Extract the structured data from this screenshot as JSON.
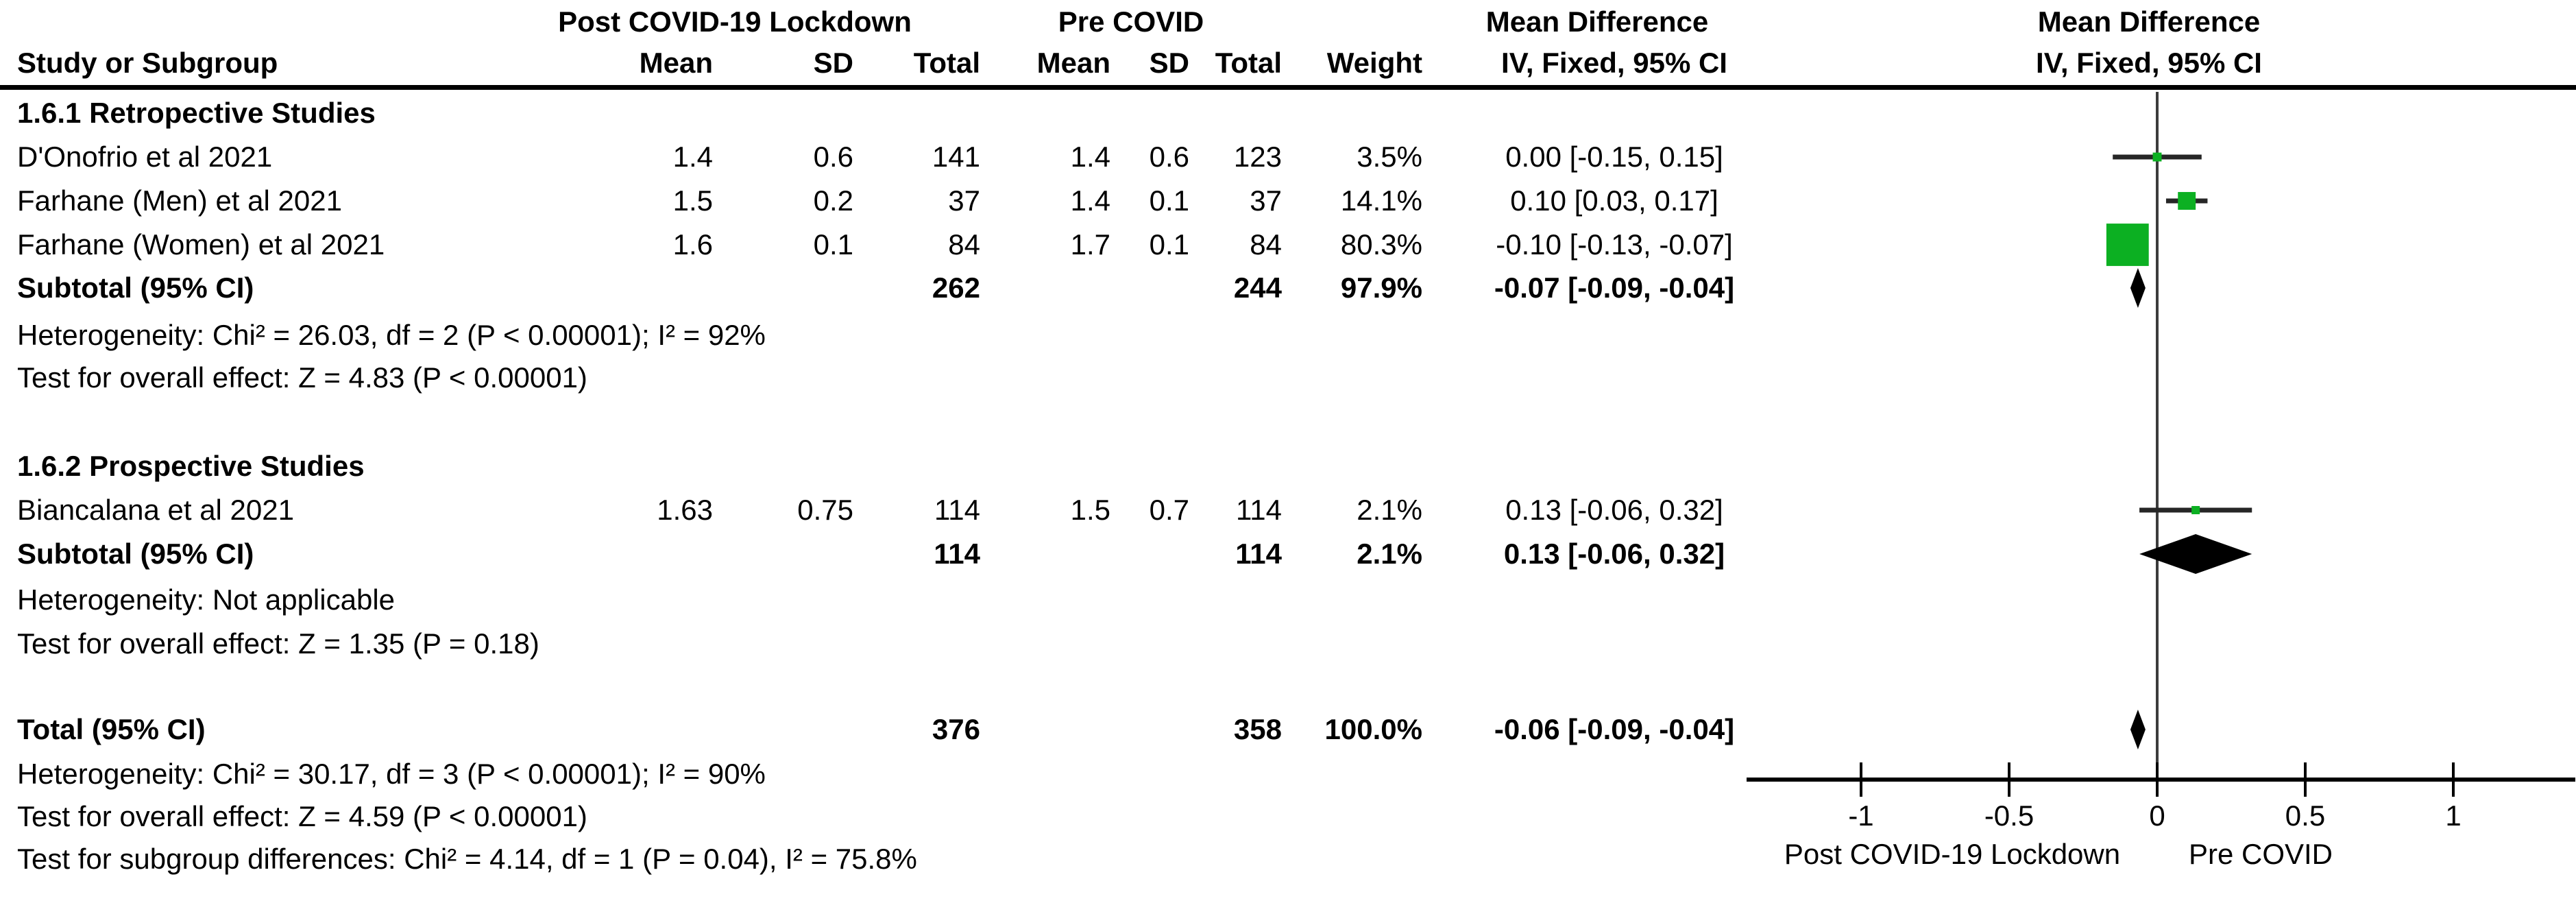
{
  "header": {
    "group1": "Post COVID-19 Lockdown",
    "group2": "Pre COVID",
    "mean_diff": "Mean Difference",
    "study_col": "Study or Subgroup",
    "mean_col": "Mean",
    "sd_col": "SD",
    "total_col": "Total",
    "weight_col": "Weight",
    "iv_col": "IV, Fixed, 95% CI"
  },
  "sections": [
    {
      "title": "1.6.1 Retropective Studies",
      "studies": [
        {
          "name": "D'Onofrio et al 2021",
          "mean1": "1.4",
          "sd1": "0.6",
          "total1": "141",
          "mean2": "1.4",
          "sd2": "0.6",
          "total2": "123",
          "weight": "3.5%",
          "ci": "0.00 [-0.15, 0.15]"
        },
        {
          "name": "Farhane (Men) et al 2021",
          "mean1": "1.5",
          "sd1": "0.2",
          "total1": "37",
          "mean2": "1.4",
          "sd2": "0.1",
          "total2": "37",
          "weight": "14.1%",
          "ci": "0.10 [0.03, 0.17]"
        },
        {
          "name": "Farhane (Women) et al 2021",
          "mean1": "1.6",
          "sd1": "0.1",
          "total1": "84",
          "mean2": "1.7",
          "sd2": "0.1",
          "total2": "84",
          "weight": "80.3%",
          "ci": "-0.10 [-0.13, -0.07]"
        }
      ],
      "subtotal": {
        "label": "Subtotal (95% CI)",
        "total1": "262",
        "total2": "244",
        "weight": "97.9%",
        "ci": "-0.07 [-0.09, -0.04]"
      },
      "heterogeneity": "Heterogeneity: Chi² = 26.03, df = 2 (P < 0.00001); I² = 92%",
      "overall_effect": "Test for overall effect: Z = 4.83 (P < 0.00001)"
    },
    {
      "title": "1.6.2 Prospective Studies",
      "studies": [
        {
          "name": "Biancalana et al 2021",
          "mean1": "1.63",
          "sd1": "0.75",
          "total1": "114",
          "mean2": "1.5",
          "sd2": "0.7",
          "total2": "114",
          "weight": "2.1%",
          "ci": "0.13 [-0.06, 0.32]"
        }
      ],
      "subtotal": {
        "label": "Subtotal (95% CI)",
        "total1": "114",
        "total2": "114",
        "weight": "2.1%",
        "ci": "0.13 [-0.06, 0.32]"
      },
      "heterogeneity": "Heterogeneity: Not applicable",
      "overall_effect": "Test for overall effect: Z = 1.35 (P = 0.18)"
    }
  ],
  "total_row": {
    "label": "Total (95% CI)",
    "total1": "376",
    "total2": "358",
    "weight": "100.0%",
    "ci": "-0.06 [-0.09, -0.04]"
  },
  "footer_stats": {
    "heterogeneity": "Heterogeneity: Chi² = 30.17, df = 3 (P < 0.00001); I² = 90%",
    "overall_effect": "Test for overall effect: Z = 4.59 (P < 0.00001)",
    "subgroup_differences": "Test for subgroup differences: Chi² = 4.14, df = 1 (P = 0.04), I² = 75.8%"
  },
  "chart_data": {
    "type": "forest",
    "effect_measure": "Mean Difference, IV, Fixed, 95% CI",
    "x_axis": {
      "min": -1,
      "max": 1,
      "tick_values": [
        -1,
        -0.5,
        0,
        0.5,
        1
      ],
      "tick_labels": [
        "-1",
        "-0.5",
        "0",
        "0.5",
        "1"
      ],
      "left_label": "Post COVID-19 Lockdown",
      "right_label": "Pre COVID"
    },
    "square_color": "#0CB022",
    "line_color": "#262626",
    "diamond_color": "#000000",
    "studies": [
      {
        "label": "D'Onofrio et al 2021",
        "md": 0.0,
        "ci_low": -0.15,
        "ci_high": 0.15,
        "weight_pct": 3.5
      },
      {
        "label": "Farhane (Men) et al 2021",
        "md": 0.1,
        "ci_low": 0.03,
        "ci_high": 0.17,
        "weight_pct": 14.1
      },
      {
        "label": "Farhane (Women) et al 2021",
        "md": -0.1,
        "ci_low": -0.13,
        "ci_high": -0.07,
        "weight_pct": 80.3
      },
      {
        "label": "Biancalana et al 2021",
        "md": 0.13,
        "ci_low": -0.06,
        "ci_high": 0.32,
        "weight_pct": 2.1
      }
    ],
    "summaries": [
      {
        "label": "Subtotal (95% CI) Retropective Studies",
        "md": -0.07,
        "ci_low": -0.09,
        "ci_high": -0.04
      },
      {
        "label": "Subtotal (95% CI) Prospective Studies",
        "md": 0.13,
        "ci_low": -0.06,
        "ci_high": 0.32
      },
      {
        "label": "Total (95% CI)",
        "md": -0.06,
        "ci_low": -0.09,
        "ci_high": -0.04
      }
    ]
  }
}
